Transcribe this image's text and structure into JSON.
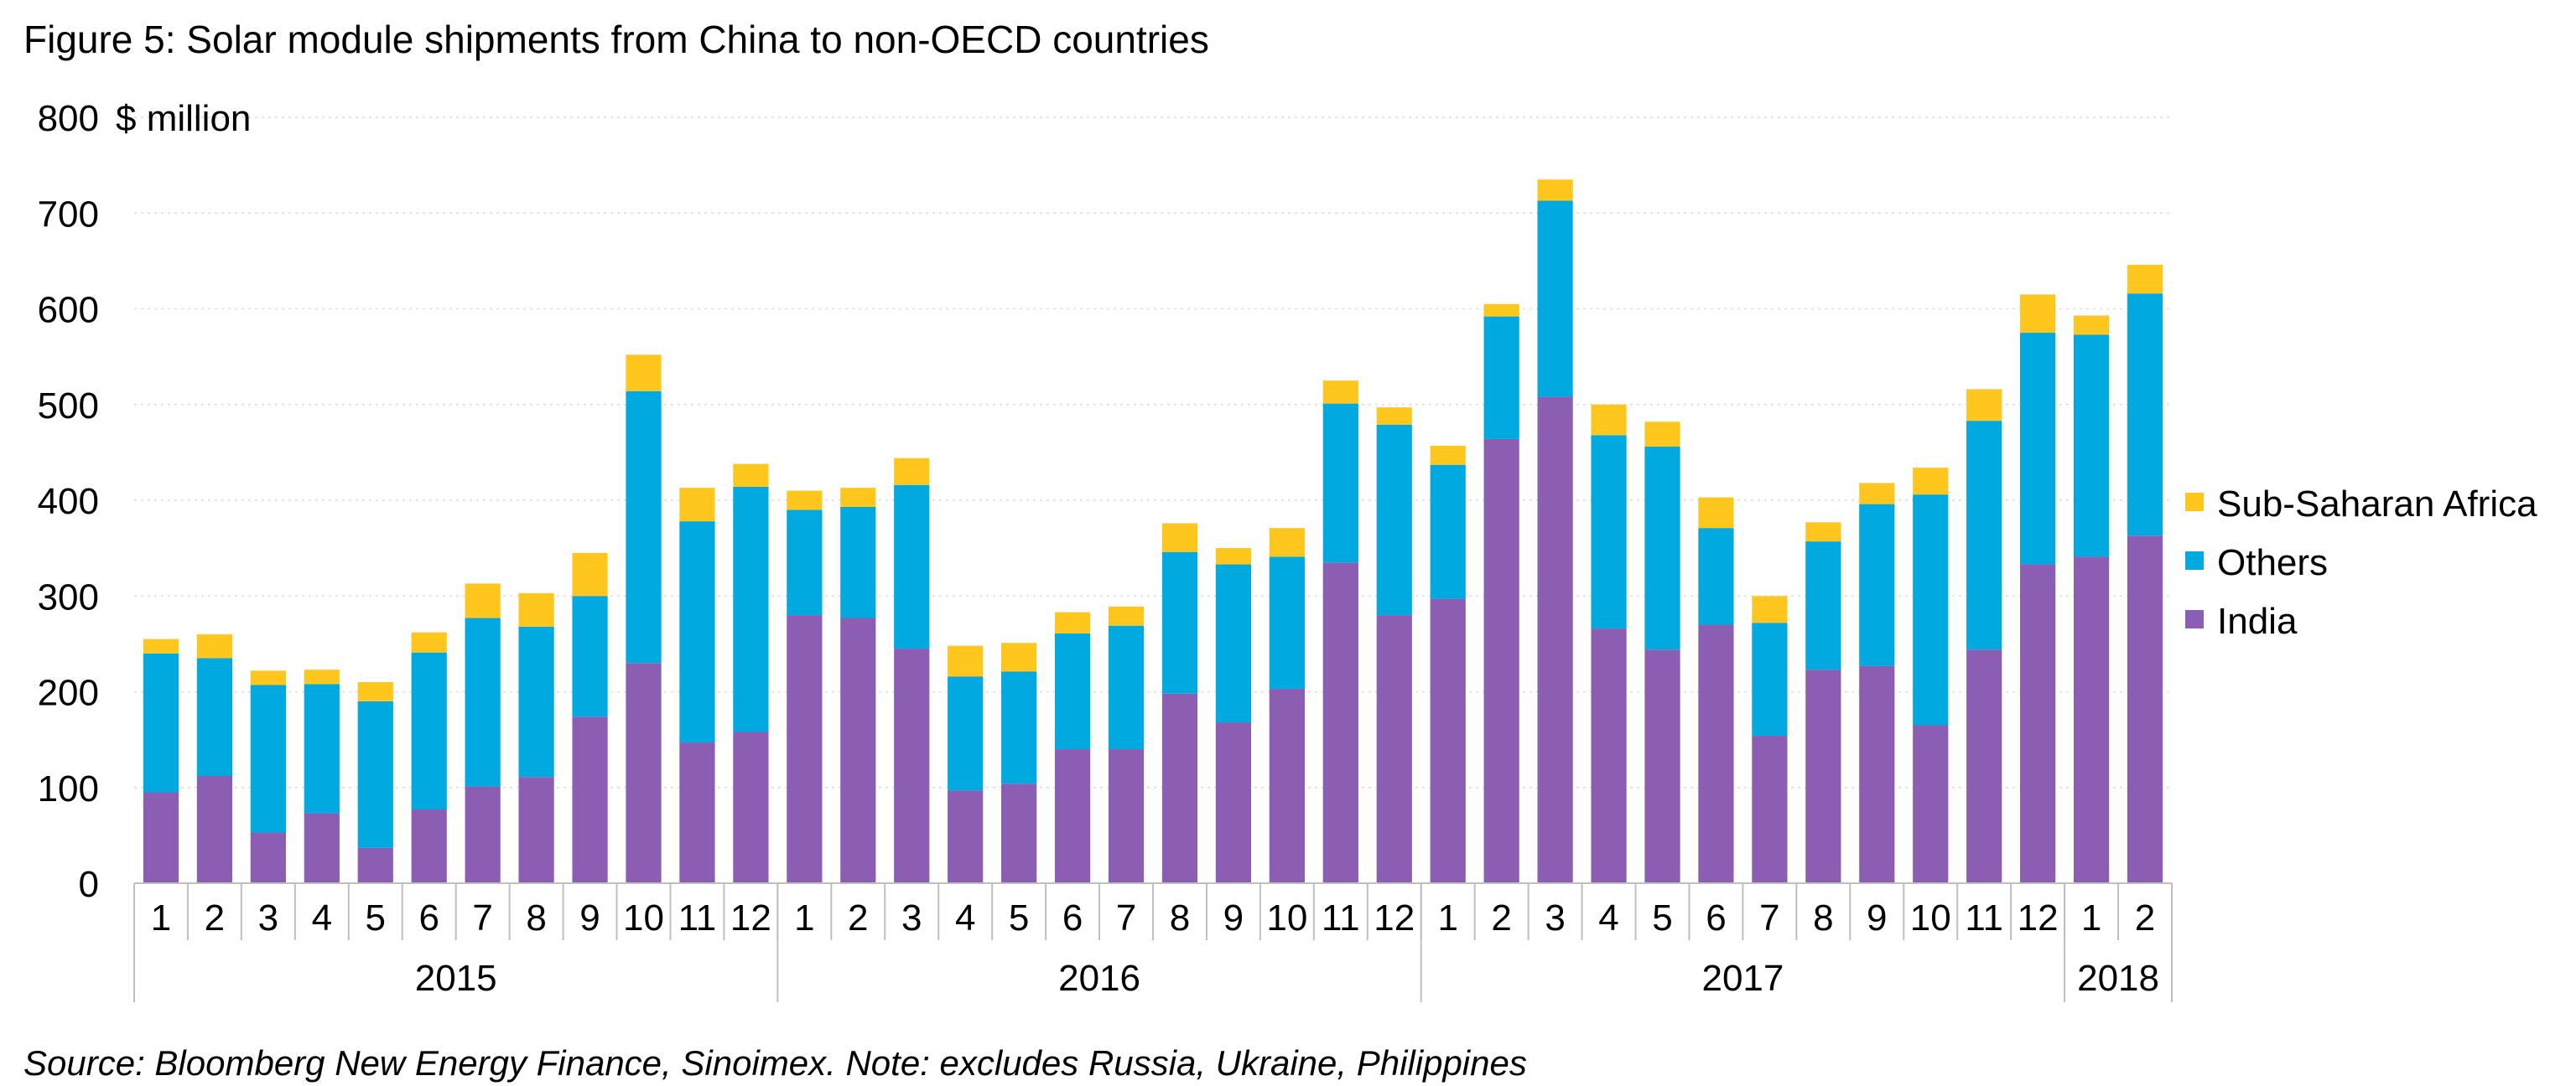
{
  "title": "Figure 5: Solar module shipments from China to non-OECD countries",
  "source": "Source: Bloomberg New Energy Finance, Sinoimex. Note: excludes Russia, Ukraine, Philippines",
  "chart_data": {
    "type": "bar",
    "stacked": true,
    "unit_label": "$ million",
    "ylim": [
      0,
      800
    ],
    "yticks": [
      0,
      100,
      200,
      300,
      400,
      500,
      600,
      700,
      800
    ],
    "grid": true,
    "legend_position": "right",
    "categories": [
      "1",
      "2",
      "3",
      "4",
      "5",
      "6",
      "7",
      "8",
      "9",
      "10",
      "11",
      "12",
      "1",
      "2",
      "3",
      "4",
      "5",
      "6",
      "7",
      "8",
      "9",
      "10",
      "11",
      "12",
      "1",
      "2",
      "3",
      "4",
      "5",
      "6",
      "7",
      "8",
      "9",
      "10",
      "11",
      "12",
      "1",
      "2"
    ],
    "groups": [
      {
        "label": "2015",
        "count": 12
      },
      {
        "label": "2016",
        "count": 12
      },
      {
        "label": "2017",
        "count": 12
      },
      {
        "label": "2018",
        "count": 2
      }
    ],
    "series": [
      {
        "name": "India",
        "color": "#8B5DB3",
        "values": [
          95,
          112,
          53,
          73,
          37,
          77,
          101,
          111,
          174,
          230,
          147,
          158,
          280,
          277,
          245,
          97,
          104,
          140,
          140,
          198,
          168,
          203,
          335,
          280,
          297,
          464,
          508,
          266,
          244,
          270,
          154,
          223,
          227,
          165,
          244,
          333,
          341,
          363
        ]
      },
      {
        "name": "Others",
        "color": "#00A9E0",
        "values": [
          145,
          123,
          154,
          135,
          153,
          164,
          176,
          157,
          126,
          284,
          231,
          256,
          110,
          116,
          171,
          119,
          117,
          121,
          129,
          148,
          165,
          138,
          166,
          199,
          140,
          128,
          205,
          202,
          212,
          101,
          118,
          134,
          169,
          241,
          239,
          242,
          232,
          253
        ]
      },
      {
        "name": "Sub-Saharan Africa",
        "color": "#FFC61E",
        "values": [
          15,
          25,
          15,
          15,
          20,
          21,
          36,
          35,
          45,
          38,
          35,
          24,
          20,
          20,
          28,
          32,
          30,
          22,
          20,
          30,
          17,
          30,
          24,
          18,
          20,
          13,
          22,
          32,
          26,
          32,
          28,
          20,
          22,
          28,
          33,
          40,
          20,
          30
        ]
      }
    ],
    "legend_order": [
      "Sub-Saharan Africa",
      "Others",
      "India"
    ]
  }
}
